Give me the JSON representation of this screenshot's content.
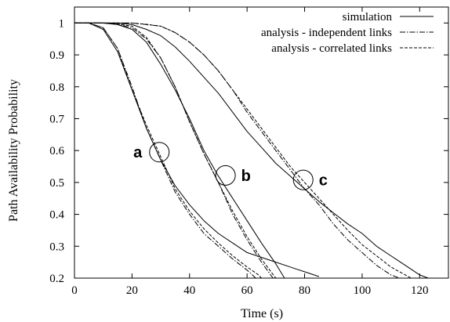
{
  "chart_data": {
    "type": "line",
    "title": "",
    "xlabel": "Time (s)",
    "ylabel": "Path Availability Probability",
    "xlim": [
      0,
      130
    ],
    "ylim": [
      0.2,
      1.05
    ],
    "xticks": [
      0,
      20,
      40,
      60,
      80,
      100,
      120
    ],
    "yticks": [
      0.2,
      0.3,
      0.4,
      0.5,
      0.6,
      0.7,
      0.8,
      0.9,
      1
    ],
    "grid": false,
    "legend_position": "top-right",
    "legend": [
      {
        "label": "simulation",
        "style": "solid"
      },
      {
        "label": "analysis - independent links",
        "style": "dashdot"
      },
      {
        "label": "analysis - correlated links",
        "style": "dashed"
      }
    ],
    "annotations": [
      {
        "label": "a",
        "x": 29.5,
        "y": 0.595
      },
      {
        "label": "b",
        "x": 52.5,
        "y": 0.522
      },
      {
        "label": "c",
        "x": 79.5,
        "y": 0.508
      }
    ],
    "series": [
      {
        "group": "a",
        "style": "solid",
        "x": [
          0,
          5,
          10,
          15,
          20,
          25,
          30,
          35,
          40,
          45,
          50,
          55,
          60,
          65,
          70,
          75,
          80,
          85
        ],
        "y": [
          1,
          1,
          0.98,
          0.91,
          0.79,
          0.67,
          0.57,
          0.49,
          0.43,
          0.38,
          0.34,
          0.31,
          0.28,
          0.265,
          0.25,
          0.235,
          0.22,
          0.205
        ]
      },
      {
        "group": "a",
        "style": "dashdot",
        "x": [
          0,
          5,
          10,
          15,
          20,
          25,
          30,
          35,
          40,
          45,
          50,
          55,
          60,
          63
        ],
        "y": [
          1,
          1,
          0.985,
          0.92,
          0.8,
          0.67,
          0.57,
          0.47,
          0.4,
          0.34,
          0.3,
          0.26,
          0.225,
          0.2
        ]
      },
      {
        "group": "a",
        "style": "dashed",
        "x": [
          0,
          5,
          10,
          15,
          20,
          25,
          30,
          35,
          40,
          45,
          50,
          55,
          60,
          64,
          65
        ],
        "y": [
          1,
          1,
          0.985,
          0.92,
          0.79,
          0.68,
          0.58,
          0.48,
          0.41,
          0.355,
          0.31,
          0.27,
          0.235,
          0.21,
          0.2
        ]
      },
      {
        "group": "b",
        "style": "solid",
        "x": [
          0,
          10,
          15,
          20,
          25,
          30,
          35,
          40,
          45,
          50,
          55,
          60,
          65,
          70,
          73
        ],
        "y": [
          1,
          1,
          0.995,
          0.98,
          0.94,
          0.87,
          0.79,
          0.7,
          0.6,
          0.52,
          0.45,
          0.38,
          0.31,
          0.245,
          0.2
        ]
      },
      {
        "group": "b",
        "style": "dashdot",
        "x": [
          0,
          10,
          15,
          20,
          25,
          30,
          35,
          40,
          45,
          50,
          55,
          60,
          65,
          69
        ],
        "y": [
          1,
          1,
          0.996,
          0.985,
          0.95,
          0.89,
          0.8,
          0.69,
          0.59,
          0.5,
          0.4,
          0.32,
          0.25,
          0.2
        ]
      },
      {
        "group": "b",
        "style": "dashed",
        "x": [
          0,
          10,
          15,
          20,
          25,
          30,
          35,
          40,
          45,
          50,
          55,
          60,
          65,
          70
        ],
        "y": [
          1,
          1,
          0.997,
          0.99,
          0.955,
          0.89,
          0.8,
          0.69,
          0.59,
          0.5,
          0.41,
          0.33,
          0.26,
          0.2
        ]
      },
      {
        "group": "c",
        "style": "solid",
        "x": [
          0,
          15,
          20,
          25,
          30,
          35,
          40,
          45,
          50,
          55,
          60,
          65,
          70,
          75,
          80,
          85,
          90,
          95,
          100,
          105,
          110,
          115,
          120,
          123
        ],
        "y": [
          1,
          1,
          0.995,
          0.98,
          0.96,
          0.925,
          0.88,
          0.83,
          0.78,
          0.72,
          0.66,
          0.61,
          0.56,
          0.52,
          0.48,
          0.44,
          0.405,
          0.37,
          0.34,
          0.3,
          0.27,
          0.24,
          0.21,
          0.2
        ]
      },
      {
        "group": "c",
        "style": "dashdot",
        "x": [
          0,
          20,
          25,
          30,
          35,
          40,
          45,
          50,
          55,
          60,
          65,
          70,
          75,
          80,
          85,
          90,
          95,
          100,
          105,
          110,
          113
        ],
        "y": [
          1,
          1,
          0.995,
          0.99,
          0.97,
          0.94,
          0.9,
          0.85,
          0.79,
          0.72,
          0.66,
          0.6,
          0.54,
          0.48,
          0.43,
          0.37,
          0.32,
          0.28,
          0.24,
          0.21,
          0.2
        ]
      },
      {
        "group": "c",
        "style": "dashed",
        "x": [
          0,
          20,
          25,
          30,
          35,
          40,
          45,
          50,
          55,
          60,
          65,
          70,
          75,
          80,
          85,
          90,
          95,
          100,
          105,
          110,
          115,
          117
        ],
        "y": [
          1,
          1,
          0.996,
          0.99,
          0.97,
          0.94,
          0.9,
          0.85,
          0.79,
          0.73,
          0.67,
          0.61,
          0.55,
          0.5,
          0.45,
          0.4,
          0.35,
          0.305,
          0.27,
          0.235,
          0.21,
          0.2
        ]
      }
    ]
  }
}
